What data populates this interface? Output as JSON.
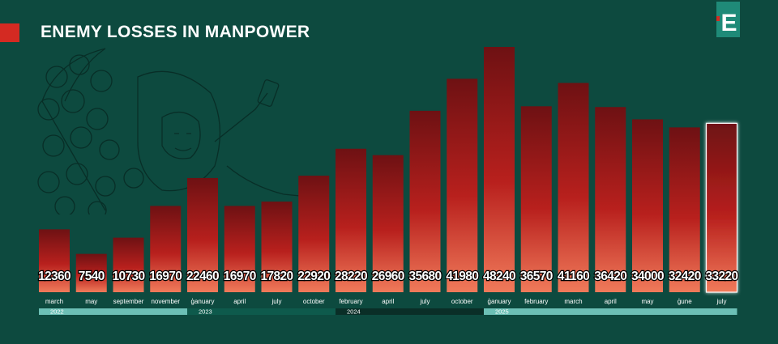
{
  "header": {
    "title": "ENEMY LOSSES IN MANPOWER"
  },
  "logo": {
    "icon": "e-logo-icon",
    "letter": "E"
  },
  "colors": {
    "background": "#0d4a3f",
    "accent": "#d42a22",
    "bar_top": "#6e1113",
    "bar_mid": "#b8201d",
    "bar_bottom": "#f07a5a",
    "year_2022": "#6cc0b6",
    "year_2023": "#0e5a4c",
    "year_2024": "#0a2e27",
    "year_2025": "#6cc0b6"
  },
  "chart_data": {
    "type": "bar",
    "title": "ENEMY LOSSES IN MANPOWER",
    "categories": [
      "march",
      "may",
      "september",
      "november",
      "ģanuary",
      "april",
      "july",
      "october",
      "february",
      "april",
      "july",
      "october",
      "ģanuary",
      "february",
      "march",
      "april",
      "may",
      "ģune",
      "july"
    ],
    "values": [
      12360,
      7540,
      10730,
      16970,
      22460,
      16970,
      17820,
      22920,
      28220,
      26960,
      35680,
      41980,
      48240,
      36570,
      41160,
      36420,
      34000,
      32420,
      33220
    ],
    "years": [
      {
        "label": "2022",
        "start": 0,
        "end": 3
      },
      {
        "label": "2023",
        "start": 4,
        "end": 7
      },
      {
        "label": "2024",
        "start": 8,
        "end": 11
      },
      {
        "label": "2025",
        "start": 12,
        "end": 18
      }
    ],
    "highlight_last": true,
    "ylim": [
      0,
      48240
    ],
    "grid": false
  }
}
